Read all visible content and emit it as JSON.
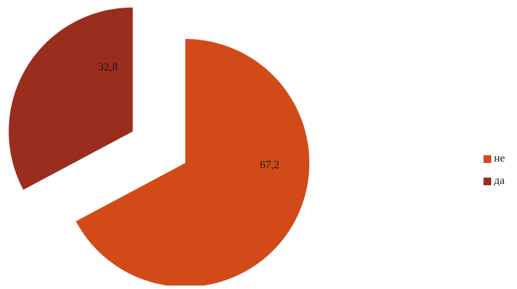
{
  "chart_data": {
    "type": "pie",
    "categories": [
      "не",
      "да"
    ],
    "values": [
      67.2,
      32.8
    ],
    "value_labels": [
      "67,2",
      "32,8"
    ],
    "colors": [
      "#D14A18",
      "#9B2D1F"
    ],
    "exploded": [
      false,
      true
    ],
    "legend_position": "right",
    "title": ""
  }
}
